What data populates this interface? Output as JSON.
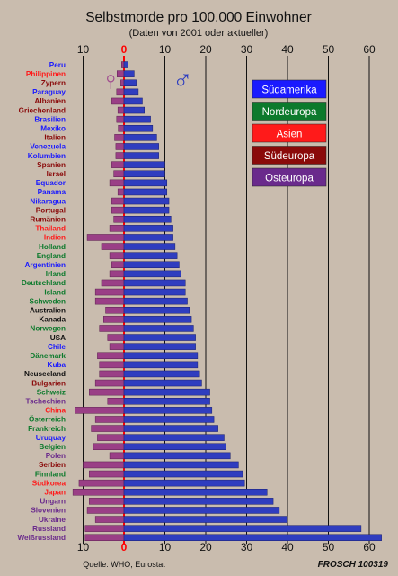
{
  "chart_data": {
    "type": "bar",
    "title": "Selbstmorde pro 100.000 Einwohner",
    "subtitle": "(Daten von 2001 oder aktueller)",
    "source": "Quelle: WHO, Eurostat",
    "signature": "FROSCH 100319",
    "female_symbol": "♀",
    "male_symbol": "♂",
    "x_ticks_top": [
      "10",
      "0",
      "10",
      "20",
      "30",
      "40",
      "50",
      "60"
    ],
    "x_ticks_bottom": [
      "10",
      "0",
      "10",
      "20",
      "30",
      "40",
      "50",
      "60"
    ],
    "xlim_female": [
      0,
      10
    ],
    "xlim_male": [
      0,
      60
    ],
    "legend": [
      {
        "label": "Südamerika",
        "color": "#1a1aff"
      },
      {
        "label": "Nordeuropa",
        "color": "#0c7a2c"
      },
      {
        "label": "Asien",
        "color": "#ff1a1a"
      },
      {
        "label": "Südeuropa",
        "color": "#8a0a0a"
      },
      {
        "label": "Osteuropa",
        "color": "#6a2a8c"
      }
    ],
    "colors": {
      "male_bar": "#2f3dbf",
      "female_bar": "#9a3f86",
      "zero_line": "#ff0000",
      "grid": "#111111"
    },
    "countries": [
      {
        "name": "Peru",
        "color": "#1a1aff",
        "male": 1.0,
        "female": 0.6
      },
      {
        "name": "Philippinen",
        "color": "#ff1a1a",
        "male": 2.5,
        "female": 1.7
      },
      {
        "name": "Zypern",
        "color": "#8a0a0a",
        "male": 3.0,
        "female": 0.8
      },
      {
        "name": "Paraguay",
        "color": "#1a1aff",
        "male": 3.5,
        "female": 1.8
      },
      {
        "name": "Albanien",
        "color": "#8a0a0a",
        "male": 4.5,
        "female": 3.0
      },
      {
        "name": "Griechenland",
        "color": "#8a0a0a",
        "male": 5.0,
        "female": 1.5
      },
      {
        "name": "Brasilien",
        "color": "#1a1aff",
        "male": 6.5,
        "female": 1.8
      },
      {
        "name": "Mexiko",
        "color": "#1a1aff",
        "male": 7.0,
        "female": 1.4
      },
      {
        "name": "Italien",
        "color": "#8a0a0a",
        "male": 8.0,
        "female": 2.3
      },
      {
        "name": "Venezuela",
        "color": "#1a1aff",
        "male": 8.5,
        "female": 2.0
      },
      {
        "name": "Kolumbien",
        "color": "#1a1aff",
        "male": 8.5,
        "female": 2.0
      },
      {
        "name": "Spanien",
        "color": "#8a0a0a",
        "male": 10.0,
        "female": 3.0
      },
      {
        "name": "Israel",
        "color": "#8a0a0a",
        "male": 10.0,
        "female": 2.5
      },
      {
        "name": "Equador",
        "color": "#1a1aff",
        "male": 10.5,
        "female": 3.5
      },
      {
        "name": "Panama",
        "color": "#1a1aff",
        "male": 10.5,
        "female": 1.5
      },
      {
        "name": "Nikaragua",
        "color": "#1a1aff",
        "male": 11.0,
        "female": 3.0
      },
      {
        "name": "Portugal",
        "color": "#8a0a0a",
        "male": 11.0,
        "female": 3.0
      },
      {
        "name": "Rumänien",
        "color": "#8a0a0a",
        "male": 11.5,
        "female": 2.5
      },
      {
        "name": "Thailand",
        "color": "#ff1a1a",
        "male": 12.0,
        "female": 3.5
      },
      {
        "name": "Indien",
        "color": "#ff1a1a",
        "male": 12.0,
        "female": 9.0
      },
      {
        "name": "Holland",
        "color": "#0c7a2c",
        "male": 12.5,
        "female": 5.5
      },
      {
        "name": "England",
        "color": "#0c7a2c",
        "male": 13.0,
        "female": 3.5
      },
      {
        "name": "Argentinien",
        "color": "#1a1aff",
        "male": 13.5,
        "female": 3.0
      },
      {
        "name": "Irland",
        "color": "#0c7a2c",
        "male": 14.0,
        "female": 3.5
      },
      {
        "name": "Deutschland",
        "color": "#0c7a2c",
        "male": 15.0,
        "female": 5.5
      },
      {
        "name": "Island",
        "color": "#0c7a2c",
        "male": 15.0,
        "female": 7.0
      },
      {
        "name": "Schweden",
        "color": "#0c7a2c",
        "male": 15.5,
        "female": 7.0
      },
      {
        "name": "Australien",
        "color": "#111111",
        "male": 16.0,
        "female": 4.5
      },
      {
        "name": "Kanada",
        "color": "#111111",
        "male": 16.5,
        "female": 5.0
      },
      {
        "name": "Norwegen",
        "color": "#0c7a2c",
        "male": 17.0,
        "female": 6.0
      },
      {
        "name": "USA",
        "color": "#111111",
        "male": 17.5,
        "female": 4.0
      },
      {
        "name": "Chile",
        "color": "#1a1aff",
        "male": 17.5,
        "female": 3.5
      },
      {
        "name": "Dänemark",
        "color": "#0c7a2c",
        "male": 18.0,
        "female": 6.5
      },
      {
        "name": "Kuba",
        "color": "#1a1aff",
        "male": 18.0,
        "female": 6.0
      },
      {
        "name": "Neuseeland",
        "color": "#111111",
        "male": 18.5,
        "female": 6.0
      },
      {
        "name": "Bulgarien",
        "color": "#8a0a0a",
        "male": 19.0,
        "female": 7.0
      },
      {
        "name": "Schweiz",
        "color": "#0c7a2c",
        "male": 21.0,
        "female": 8.5
      },
      {
        "name": "Tschechien",
        "color": "#6a2a8c",
        "male": 21.0,
        "female": 4.0
      },
      {
        "name": "China",
        "color": "#ff1a1a",
        "male": 21.5,
        "female": 12.0
      },
      {
        "name": "Österreich",
        "color": "#0c7a2c",
        "male": 22.0,
        "female": 7.0
      },
      {
        "name": "Frankreich",
        "color": "#0c7a2c",
        "male": 23.0,
        "female": 8.0
      },
      {
        "name": "Uruquay",
        "color": "#1a1aff",
        "male": 24.5,
        "female": 6.5
      },
      {
        "name": "Belgien",
        "color": "#0c7a2c",
        "male": 25.0,
        "female": 7.5
      },
      {
        "name": "Polen",
        "color": "#6a2a8c",
        "male": 26.0,
        "female": 3.5
      },
      {
        "name": "Serbien",
        "color": "#8a0a0a",
        "male": 28.0,
        "female": 10.0
      },
      {
        "name": "Finnland",
        "color": "#0c7a2c",
        "male": 29.0,
        "female": 8.5
      },
      {
        "name": "Südkorea",
        "color": "#ff1a1a",
        "male": 29.5,
        "female": 11.0
      },
      {
        "name": "Japan",
        "color": "#ff1a1a",
        "male": 35.0,
        "female": 12.5
      },
      {
        "name": "Ungarn",
        "color": "#6a2a8c",
        "male": 36.5,
        "female": 8.5
      },
      {
        "name": "Slovenien",
        "color": "#6a2a8c",
        "male": 38.0,
        "female": 9.0
      },
      {
        "name": "Ukraine",
        "color": "#6a2a8c",
        "male": 40.0,
        "female": 7.0
      },
      {
        "name": "Russland",
        "color": "#6a2a8c",
        "male": 58.0,
        "female": 9.5
      },
      {
        "name": "Weißrussland",
        "color": "#6a2a8c",
        "male": 63.0,
        "female": 9.5
      }
    ]
  }
}
